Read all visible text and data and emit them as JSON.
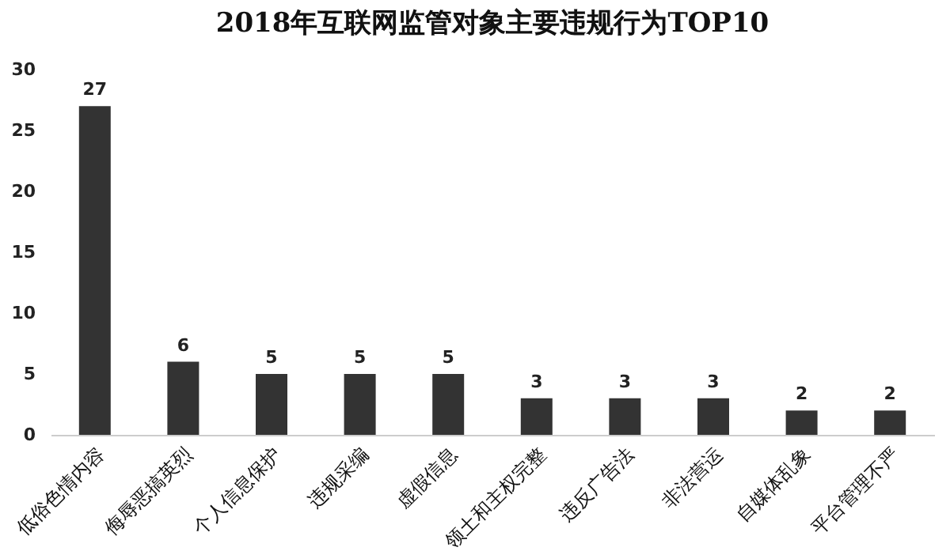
{
  "chart_data": {
    "type": "bar",
    "title": "2018年互联网监管对象主要违规行为TOP10",
    "categories": [
      "低俗色情内容",
      "侮辱恶搞英烈",
      "个人信息保护",
      "违规采编",
      "虚假信息",
      "领土和主权完整",
      "违反广告法",
      "非法营运",
      "自媒体乱象",
      "平台管理不严"
    ],
    "values": [
      27,
      6,
      5,
      5,
      5,
      3,
      3,
      3,
      2,
      2
    ],
    "color": "#333333",
    "ylim": [
      0,
      30
    ],
    "yticks": [
      0,
      5,
      10,
      15,
      20,
      25,
      30
    ],
    "grid": false,
    "data_labels": true
  }
}
